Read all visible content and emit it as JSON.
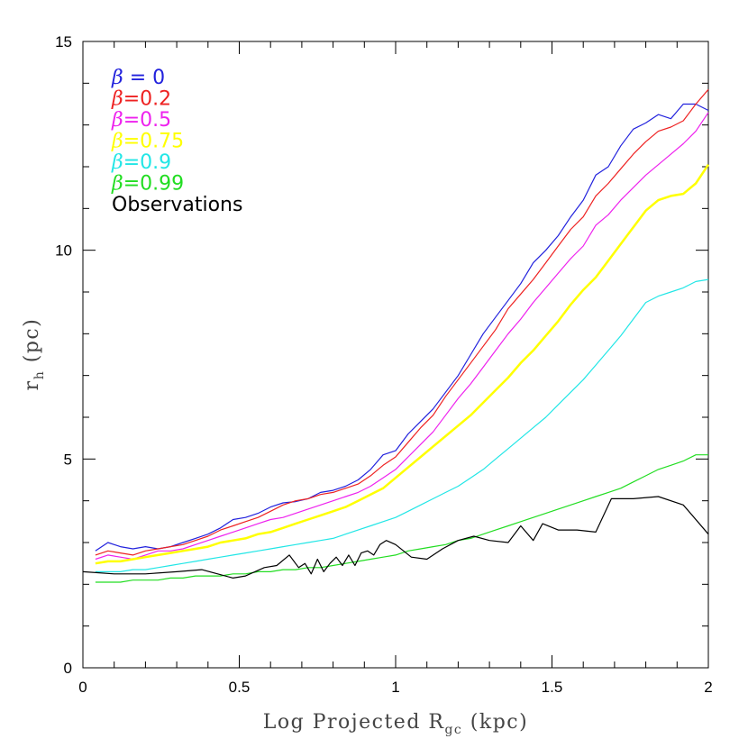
{
  "chart_data": {
    "type": "line",
    "xlabel": "Log Projected R",
    "xlabel_sub": "gc",
    "xlabel_unit": "(kpc)",
    "ylabel": "r",
    "ylabel_sub": "h",
    "ylabel_unit": "(pc)",
    "xlim": [
      0,
      2
    ],
    "ylim": [
      0,
      15
    ],
    "xticks": [
      0,
      0.5,
      1,
      1.5,
      2
    ],
    "xtick_labels": [
      "0",
      "0.5",
      "1",
      "1.5",
      "2"
    ],
    "yticks": [
      0,
      5,
      10,
      15
    ],
    "ytick_labels": [
      "0",
      "5",
      "10",
      "15"
    ],
    "legend_position": "top-left",
    "series": [
      {
        "name": "β = 0",
        "label_symbol": "β",
        "label_rest": " = 0",
        "color": "#2222dd",
        "x": [
          0.04,
          0.08,
          0.12,
          0.16,
          0.2,
          0.24,
          0.28,
          0.32,
          0.36,
          0.4,
          0.44,
          0.48,
          0.52,
          0.56,
          0.6,
          0.64,
          0.68,
          0.72,
          0.76,
          0.8,
          0.84,
          0.88,
          0.92,
          0.96,
          1.0,
          1.04,
          1.08,
          1.12,
          1.16,
          1.2,
          1.24,
          1.28,
          1.32,
          1.36,
          1.4,
          1.44,
          1.48,
          1.52,
          1.56,
          1.6,
          1.64,
          1.68,
          1.72,
          1.76,
          1.8,
          1.84,
          1.88,
          1.92,
          1.96,
          2.0
        ],
        "y": [
          2.8,
          3.0,
          2.9,
          2.85,
          2.9,
          2.85,
          2.9,
          3.0,
          3.1,
          3.2,
          3.35,
          3.55,
          3.6,
          3.7,
          3.85,
          3.95,
          3.98,
          4.05,
          4.2,
          4.25,
          4.35,
          4.5,
          4.75,
          5.1,
          5.2,
          5.6,
          5.9,
          6.2,
          6.6,
          7.0,
          7.5,
          8.0,
          8.4,
          8.8,
          9.2,
          9.7,
          10.0,
          10.35,
          10.8,
          11.2,
          11.8,
          12.0,
          12.5,
          12.9,
          13.05,
          13.25,
          13.15,
          13.5,
          13.5,
          13.35
        ]
      },
      {
        "name": "β=0.2",
        "label_symbol": "β",
        "label_rest": "=0.2",
        "color": "#ee2222",
        "x": [
          0.04,
          0.08,
          0.12,
          0.16,
          0.2,
          0.24,
          0.28,
          0.32,
          0.36,
          0.4,
          0.44,
          0.48,
          0.52,
          0.56,
          0.6,
          0.64,
          0.68,
          0.72,
          0.76,
          0.8,
          0.84,
          0.88,
          0.92,
          0.96,
          1.0,
          1.04,
          1.08,
          1.12,
          1.16,
          1.2,
          1.24,
          1.28,
          1.32,
          1.36,
          1.4,
          1.44,
          1.48,
          1.52,
          1.56,
          1.6,
          1.64,
          1.68,
          1.72,
          1.76,
          1.8,
          1.84,
          1.88,
          1.92,
          1.96,
          2.0
        ],
        "y": [
          2.7,
          2.8,
          2.75,
          2.7,
          2.8,
          2.85,
          2.9,
          2.95,
          3.05,
          3.15,
          3.3,
          3.4,
          3.5,
          3.6,
          3.75,
          3.9,
          4.0,
          4.05,
          4.15,
          4.2,
          4.3,
          4.4,
          4.6,
          4.85,
          5.05,
          5.4,
          5.75,
          6.05,
          6.5,
          6.9,
          7.3,
          7.7,
          8.1,
          8.6,
          8.95,
          9.3,
          9.7,
          10.1,
          10.5,
          10.8,
          11.3,
          11.6,
          11.95,
          12.3,
          12.6,
          12.85,
          12.95,
          13.1,
          13.5,
          13.85
        ]
      },
      {
        "name": "β=0.5",
        "label_symbol": "β",
        "label_rest": "=0.5",
        "color": "#ee22ee",
        "x": [
          0.04,
          0.08,
          0.12,
          0.16,
          0.2,
          0.24,
          0.28,
          0.32,
          0.36,
          0.4,
          0.44,
          0.48,
          0.52,
          0.56,
          0.6,
          0.64,
          0.68,
          0.72,
          0.76,
          0.8,
          0.84,
          0.88,
          0.92,
          0.96,
          1.0,
          1.04,
          1.08,
          1.12,
          1.16,
          1.2,
          1.24,
          1.28,
          1.32,
          1.36,
          1.4,
          1.44,
          1.48,
          1.52,
          1.56,
          1.6,
          1.64,
          1.68,
          1.72,
          1.76,
          1.8,
          1.84,
          1.88,
          1.92,
          1.96,
          2.0
        ],
        "y": [
          2.6,
          2.7,
          2.65,
          2.6,
          2.7,
          2.8,
          2.8,
          2.85,
          2.95,
          3.05,
          3.15,
          3.25,
          3.35,
          3.45,
          3.55,
          3.6,
          3.7,
          3.8,
          3.9,
          4.0,
          4.1,
          4.2,
          4.35,
          4.55,
          4.75,
          5.05,
          5.35,
          5.65,
          6.05,
          6.45,
          6.8,
          7.2,
          7.6,
          8.0,
          8.35,
          8.75,
          9.1,
          9.45,
          9.8,
          10.1,
          10.6,
          10.85,
          11.2,
          11.5,
          11.8,
          12.05,
          12.3,
          12.55,
          12.85,
          13.3
        ]
      },
      {
        "name": "β=0.75",
        "label_symbol": "β",
        "label_rest": "=0.75",
        "color": "#ffff00",
        "x": [
          0.04,
          0.08,
          0.12,
          0.16,
          0.2,
          0.24,
          0.28,
          0.32,
          0.36,
          0.4,
          0.44,
          0.48,
          0.52,
          0.56,
          0.6,
          0.64,
          0.68,
          0.72,
          0.76,
          0.8,
          0.84,
          0.88,
          0.92,
          0.96,
          1.0,
          1.04,
          1.08,
          1.12,
          1.16,
          1.2,
          1.24,
          1.28,
          1.32,
          1.36,
          1.4,
          1.44,
          1.48,
          1.52,
          1.56,
          1.6,
          1.64,
          1.68,
          1.72,
          1.76,
          1.8,
          1.84,
          1.88,
          1.92,
          1.96,
          2.0
        ],
        "y": [
          2.5,
          2.55,
          2.55,
          2.6,
          2.65,
          2.7,
          2.75,
          2.8,
          2.85,
          2.9,
          3.0,
          3.05,
          3.1,
          3.2,
          3.25,
          3.35,
          3.45,
          3.55,
          3.65,
          3.75,
          3.85,
          4.0,
          4.15,
          4.3,
          4.55,
          4.8,
          5.05,
          5.3,
          5.55,
          5.8,
          6.05,
          6.35,
          6.65,
          6.95,
          7.3,
          7.6,
          7.95,
          8.3,
          8.7,
          9.05,
          9.35,
          9.75,
          10.15,
          10.55,
          10.95,
          11.2,
          11.3,
          11.35,
          11.6,
          12.05
        ]
      },
      {
        "name": "β=0.9",
        "label_symbol": "β",
        "label_rest": "=0.9",
        "color": "#22e6e6",
        "x": [
          0.04,
          0.08,
          0.12,
          0.16,
          0.2,
          0.24,
          0.28,
          0.32,
          0.36,
          0.4,
          0.44,
          0.48,
          0.52,
          0.56,
          0.6,
          0.64,
          0.68,
          0.72,
          0.76,
          0.8,
          0.84,
          0.88,
          0.92,
          0.96,
          1.0,
          1.04,
          1.08,
          1.12,
          1.16,
          1.2,
          1.24,
          1.28,
          1.32,
          1.36,
          1.4,
          1.44,
          1.48,
          1.52,
          1.56,
          1.6,
          1.64,
          1.68,
          1.72,
          1.76,
          1.8,
          1.84,
          1.88,
          1.92,
          1.96,
          2.0
        ],
        "y": [
          2.3,
          2.3,
          2.3,
          2.35,
          2.35,
          2.4,
          2.45,
          2.5,
          2.55,
          2.6,
          2.65,
          2.7,
          2.75,
          2.8,
          2.85,
          2.9,
          2.95,
          3.0,
          3.05,
          3.1,
          3.2,
          3.3,
          3.4,
          3.5,
          3.6,
          3.75,
          3.9,
          4.05,
          4.2,
          4.35,
          4.55,
          4.75,
          5.0,
          5.25,
          5.5,
          5.75,
          6.0,
          6.3,
          6.6,
          6.9,
          7.25,
          7.6,
          7.95,
          8.35,
          8.75,
          8.9,
          9.0,
          9.1,
          9.25,
          9.3
        ]
      },
      {
        "name": "β=0.99",
        "label_symbol": "β",
        "label_rest": "=0.99",
        "color": "#22dd22",
        "x": [
          0.04,
          0.08,
          0.12,
          0.16,
          0.2,
          0.24,
          0.28,
          0.32,
          0.36,
          0.4,
          0.44,
          0.48,
          0.52,
          0.56,
          0.6,
          0.64,
          0.68,
          0.72,
          0.76,
          0.8,
          0.84,
          0.88,
          0.92,
          0.96,
          1.0,
          1.04,
          1.08,
          1.12,
          1.16,
          1.2,
          1.24,
          1.28,
          1.32,
          1.36,
          1.4,
          1.44,
          1.48,
          1.52,
          1.56,
          1.6,
          1.64,
          1.68,
          1.72,
          1.76,
          1.8,
          1.84,
          1.88,
          1.92,
          1.96,
          2.0
        ],
        "y": [
          2.05,
          2.05,
          2.05,
          2.1,
          2.1,
          2.1,
          2.15,
          2.15,
          2.2,
          2.2,
          2.2,
          2.25,
          2.25,
          2.3,
          2.3,
          2.35,
          2.35,
          2.4,
          2.4,
          2.45,
          2.5,
          2.55,
          2.6,
          2.65,
          2.7,
          2.8,
          2.85,
          2.9,
          2.95,
          3.05,
          3.1,
          3.2,
          3.3,
          3.4,
          3.5,
          3.6,
          3.7,
          3.8,
          3.9,
          4.0,
          4.1,
          4.2,
          4.3,
          4.45,
          4.6,
          4.75,
          4.85,
          4.95,
          5.1,
          5.1
        ]
      },
      {
        "name": "Observations",
        "label_symbol": "",
        "label_rest": "Observations",
        "color": "#000000",
        "x": [
          0.0,
          0.1,
          0.2,
          0.3,
          0.38,
          0.48,
          0.52,
          0.55,
          0.58,
          0.62,
          0.66,
          0.69,
          0.71,
          0.73,
          0.75,
          0.77,
          0.79,
          0.81,
          0.83,
          0.85,
          0.87,
          0.89,
          0.91,
          0.93,
          0.95,
          0.97,
          1.0,
          1.05,
          1.1,
          1.15,
          1.2,
          1.25,
          1.3,
          1.36,
          1.4,
          1.44,
          1.47,
          1.52,
          1.58,
          1.64,
          1.69,
          1.76,
          1.84,
          1.92,
          2.0
        ],
        "y": [
          2.3,
          2.25,
          2.25,
          2.3,
          2.35,
          2.15,
          2.2,
          2.3,
          2.4,
          2.45,
          2.7,
          2.4,
          2.5,
          2.25,
          2.6,
          2.3,
          2.5,
          2.65,
          2.45,
          2.7,
          2.45,
          2.75,
          2.8,
          2.7,
          2.95,
          3.05,
          2.95,
          2.65,
          2.6,
          2.85,
          3.05,
          3.15,
          3.05,
          3.0,
          3.4,
          3.05,
          3.45,
          3.3,
          3.3,
          3.25,
          4.05,
          4.05,
          4.1,
          3.9,
          3.2
        ]
      }
    ]
  }
}
